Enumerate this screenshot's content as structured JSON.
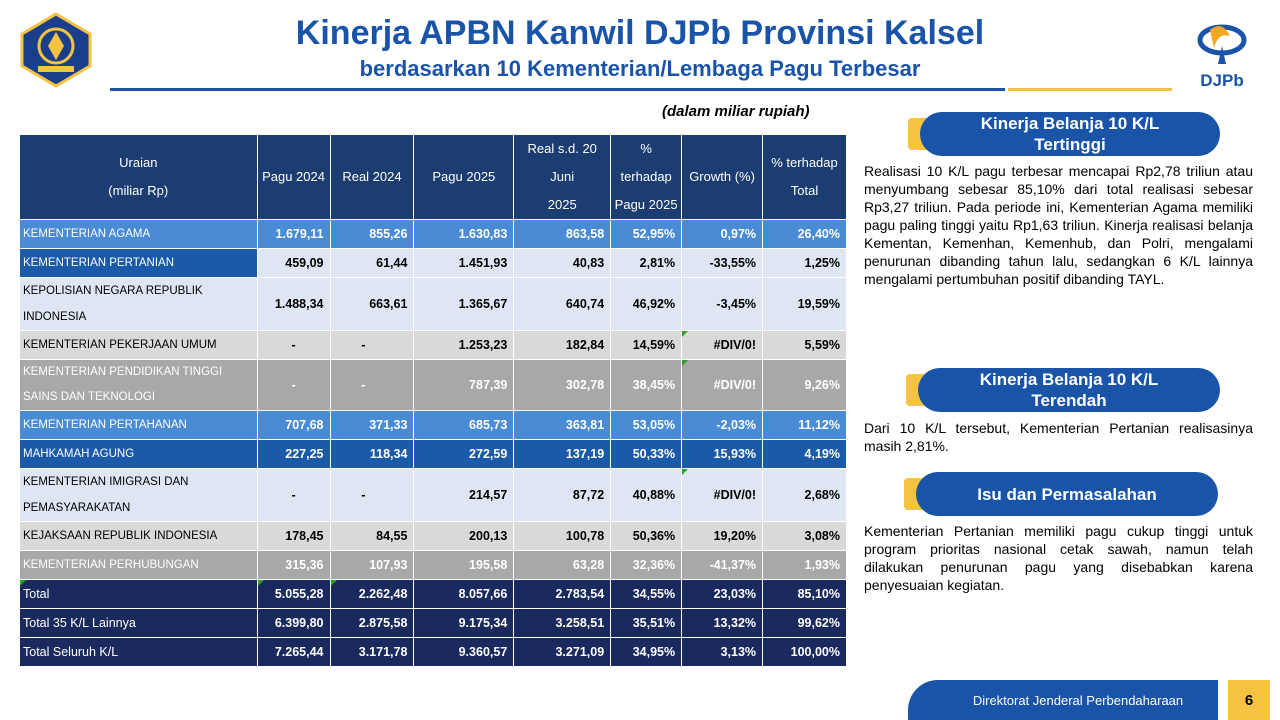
{
  "header": {
    "title": "Kinerja APBN Kanwil DJPb Provinsi Kalsel",
    "subtitle": "berdasarkan 10 Kementerian/Lembaga Pagu Terbesar",
    "unit_note": "(dalam miliar rupiah)",
    "logo_right_text": "DJPb"
  },
  "colors": {
    "primary_blue": "#1a54a8",
    "gold": "#f5c242",
    "table_header": "#1b3d72"
  },
  "table": {
    "headers": [
      [
        "Uraian",
        "(miliar Rp)"
      ],
      [
        "Pagu 2024"
      ],
      [
        "Real 2024"
      ],
      [
        "Pagu 2025"
      ],
      [
        "Real s.d. 20 Juni",
        "2025"
      ],
      [
        "% terhadap",
        "Pagu 2025"
      ],
      [
        "Growth (%)"
      ],
      [
        "% terhadap",
        "Total"
      ]
    ],
    "rows": [
      [
        "KEMENTERIAN AGAMA",
        "1.679,11",
        "855,26",
        "1.630,83",
        "863,58",
        "52,95%",
        "0,97%",
        "26,40%"
      ],
      [
        "KEMENTERIAN PERTANIAN",
        "459,09",
        "61,44",
        "1.451,93",
        "40,83",
        "2,81%",
        "-33,55%",
        "1,25%"
      ],
      [
        "KEPOLISIAN NEGARA REPUBLIK INDONESIA",
        "1.488,34",
        "663,61",
        "1.365,67",
        "640,74",
        "46,92%",
        "-3,45%",
        "19,59%"
      ],
      [
        "KEMENTERIAN PEKERJAAN UMUM",
        "-",
        "-",
        "1.253,23",
        "182,84",
        "14,59%",
        "#DIV/0!",
        "5,59%"
      ],
      [
        "KEMENTERIAN PENDIDIKAN TINGGI SAINS DAN TEKNOLOGI",
        "-",
        "-",
        "787,39",
        "302,78",
        "38,45%",
        "#DIV/0!",
        "9,26%"
      ],
      [
        "KEMENTERIAN PERTAHANAN",
        "707,68",
        "371,33",
        "685,73",
        "363,81",
        "53,05%",
        "-2,03%",
        "11,12%"
      ],
      [
        "MAHKAMAH AGUNG",
        "227,25",
        "118,34",
        "272,59",
        "137,19",
        "50,33%",
        "15,93%",
        "4,19%"
      ],
      [
        "KEMENTERIAN IMIGRASI DAN PEMASYARAKATAN",
        "-",
        "-",
        "214,57",
        "87,72",
        "40,88%",
        "#DIV/0!",
        "2,68%"
      ],
      [
        "KEJAKSAAN REPUBLIK INDONESIA",
        "178,45",
        "84,55",
        "200,13",
        "100,78",
        "50,36%",
        "19,20%",
        "3,08%"
      ],
      [
        "KEMENTERIAN PERHUBUNGAN",
        "315,36",
        "107,93",
        "195,58",
        "63,28",
        "32,36%",
        "-41,37%",
        "1,93%"
      ]
    ],
    "totals": [
      [
        "Total",
        "5.055,28",
        "2.262,48",
        "8.057,66",
        "2.783,54",
        "34,55%",
        "23,03%",
        "85,10%"
      ],
      [
        "Total 35 K/L Lainnya",
        "6.399,80",
        "2.875,58",
        "9.175,34",
        "3.258,51",
        "35,51%",
        "13,32%",
        "99,62%"
      ],
      [
        "Total Seluruh K/L",
        "7.265,44",
        "3.171,78",
        "9.360,57",
        "3.271,09",
        "34,95%",
        "3,13%",
        "100,00%"
      ]
    ]
  },
  "panel": {
    "highest": {
      "title_line1": "Kinerja Belanja 10 K/L",
      "title_line2": "Tertinggi",
      "text": "Realisasi 10 K/L pagu terbesar mencapai Rp2,78 triliun atau menyumbang sebesar 85,10% dari total realisasi sebesar Rp3,27 triliun. Pada periode ini, Kementerian Agama memiliki pagu paling tinggi yaitu Rp1,63 triliun. Kinerja realisasi belanja Kementan, Kemenhan, Kemenhub, dan Polri, mengalami penurunan dibanding tahun lalu, sedangkan 6 K/L lainnya mengalami pertumbuhan positif dibanding TAYL."
    },
    "lowest": {
      "title_line1": "Kinerja Belanja 10 K/L",
      "title_line2": "Terendah",
      "text": "Dari 10 K/L tersebut, Kementerian Pertanian realisasinya masih 2,81%."
    },
    "issues": {
      "title": "Isu dan Permasalahan",
      "text": "Kementerian Pertanian memiliki pagu cukup tinggi untuk program prioritas nasional cetak sawah, namun telah dilakukan penurunan pagu yang disebabkan karena penyesuaian kegiatan."
    }
  },
  "footer": {
    "label": "Direktorat Jenderal Perbendaharaan",
    "page": "6"
  }
}
